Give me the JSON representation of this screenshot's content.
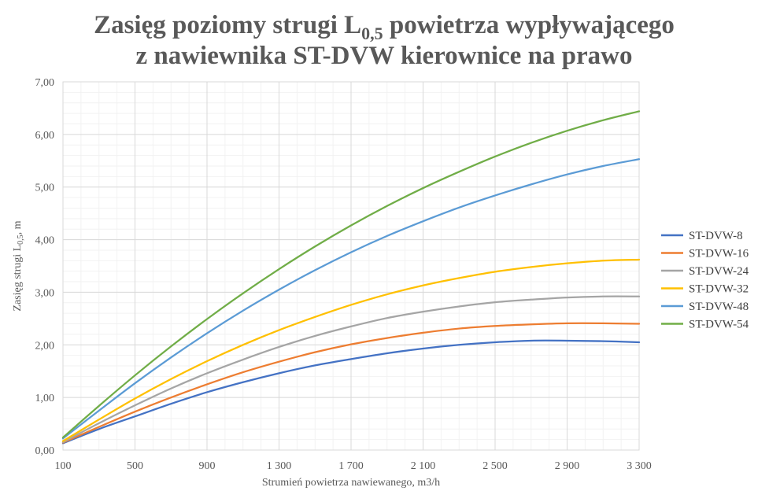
{
  "chart_data": {
    "type": "line",
    "title": {
      "line1_prefix": "Zasięg poziomy strugi L",
      "line1_subscript": "0,5",
      "line1_suffix": " powietrza wypływającego",
      "line2": "z nawiewnika  ST-DVW kierownice na prawo"
    },
    "xlabel": "Strumień  powietrza  nawiewanego,  m3/h",
    "ylabel": {
      "prefix": "Zasięg  strugi  L",
      "subscript": "0,5",
      "suffix": ", m"
    },
    "x": [
      100,
      300,
      500,
      700,
      900,
      1100,
      1300,
      1500,
      1700,
      1900,
      2100,
      2300,
      2500,
      2700,
      2900,
      3100,
      3300
    ],
    "xlim": [
      100,
      3300
    ],
    "ylim": [
      0,
      7
    ],
    "x_tick_labels": [
      "100",
      "500",
      "900",
      "1 300",
      "1 700",
      "2 100",
      "2 500",
      "2 900",
      "3 300"
    ],
    "y_tick_labels": [
      "0,00",
      "1,00",
      "2,00",
      "3,00",
      "4,00",
      "5,00",
      "6,00",
      "7,00"
    ],
    "grid": true,
    "legend_position": "right",
    "series": [
      {
        "name": "ST-DVW-8",
        "color": "#4472C4",
        "values": [
          0.13,
          0.4,
          0.64,
          0.88,
          1.1,
          1.29,
          1.46,
          1.61,
          1.73,
          1.84,
          1.93,
          2.0,
          2.05,
          2.08,
          2.08,
          2.07,
          2.05
        ]
      },
      {
        "name": "ST-DVW-16",
        "color": "#ED7D31",
        "values": [
          0.14,
          0.44,
          0.73,
          1.0,
          1.25,
          1.48,
          1.68,
          1.86,
          2.01,
          2.13,
          2.23,
          2.31,
          2.36,
          2.39,
          2.41,
          2.41,
          2.4
        ]
      },
      {
        "name": "ST-DVW-24",
        "color": "#A5A5A5",
        "values": [
          0.15,
          0.51,
          0.85,
          1.17,
          1.46,
          1.72,
          1.96,
          2.17,
          2.35,
          2.51,
          2.63,
          2.73,
          2.81,
          2.86,
          2.9,
          2.92,
          2.92
        ]
      },
      {
        "name": "ST-DVW-32",
        "color": "#FFC000",
        "values": [
          0.17,
          0.58,
          0.98,
          1.35,
          1.69,
          2.0,
          2.28,
          2.53,
          2.76,
          2.96,
          3.13,
          3.27,
          3.39,
          3.48,
          3.55,
          3.6,
          3.62
        ]
      },
      {
        "name": "ST-DVW-48",
        "color": "#5B9BD5",
        "values": [
          0.22,
          0.75,
          1.27,
          1.76,
          2.22,
          2.65,
          3.05,
          3.42,
          3.76,
          4.07,
          4.35,
          4.61,
          4.84,
          5.05,
          5.24,
          5.4,
          5.53
        ]
      },
      {
        "name": "ST-DVW-54",
        "color": "#70AD47",
        "values": [
          0.24,
          0.84,
          1.42,
          1.97,
          2.49,
          2.98,
          3.44,
          3.87,
          4.27,
          4.64,
          4.98,
          5.29,
          5.58,
          5.84,
          6.07,
          6.27,
          6.44
        ]
      }
    ]
  }
}
